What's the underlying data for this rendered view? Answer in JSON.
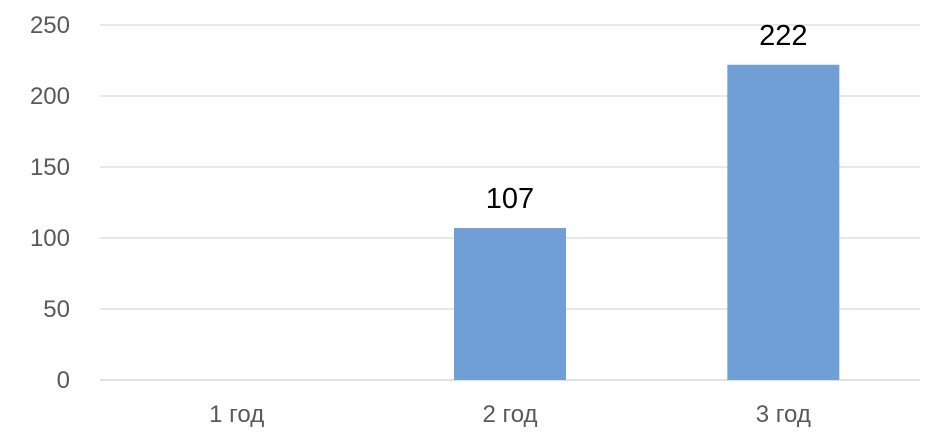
{
  "chart_data": {
    "type": "bar",
    "categories": [
      "1 год",
      "2 год",
      "3 год"
    ],
    "values": [
      0,
      107,
      222
    ],
    "data_labels": [
      "",
      "107",
      "222"
    ],
    "ylim": [
      0,
      250
    ],
    "yticks": [
      "0",
      "50",
      "100",
      "150",
      "200",
      "250"
    ],
    "title": "",
    "xlabel": "",
    "ylabel": "",
    "grid": true,
    "legend": "none",
    "bar_color": "#709fd5"
  }
}
